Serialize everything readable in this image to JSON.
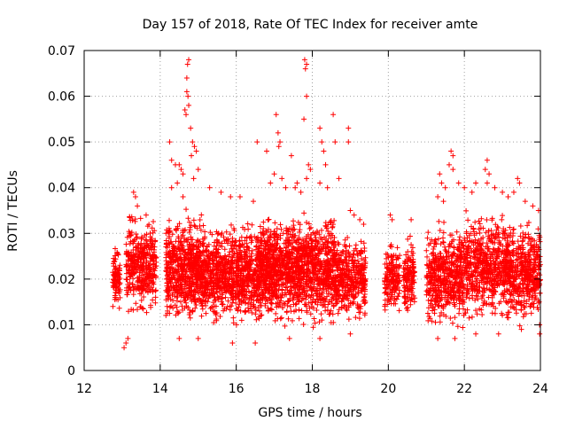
{
  "chart_data": {
    "type": "scatter",
    "title": "Day 157 of 2018, Rate Of TEC Index for receiver amte",
    "xlabel": "GPS time / hours",
    "ylabel": "ROTI / TECUs",
    "xlim": [
      12,
      24
    ],
    "ylim": [
      0,
      0.07
    ],
    "xticks": [
      12,
      14,
      16,
      18,
      20,
      22,
      24
    ],
    "yticks": [
      0,
      0.01,
      0.02,
      0.03,
      0.04,
      0.05,
      0.06,
      0.07
    ],
    "xtick_labels": [
      "12",
      "14",
      "16",
      "18",
      "20",
      "22",
      "24"
    ],
    "ytick_labels": [
      "0",
      "0.01",
      "0.02",
      "0.03",
      "0.04",
      "0.05",
      "0.06",
      "0.07"
    ],
    "grid": true,
    "marker": "+",
    "series_color": "#ff0000",
    "clusters": [
      {
        "x_start": 12.75,
        "x_end": 12.95,
        "y_min": 0.012,
        "y_max": 0.029,
        "count": 90
      },
      {
        "x_start": 13.1,
        "x_end": 13.9,
        "y_min": 0.009,
        "y_max": 0.036,
        "count": 380
      },
      {
        "x_start": 14.15,
        "x_end": 15.2,
        "y_min": 0.008,
        "y_max": 0.036,
        "count": 700
      },
      {
        "x_start": 15.2,
        "x_end": 16.6,
        "y_min": 0.008,
        "y_max": 0.034,
        "count": 800
      },
      {
        "x_start": 16.6,
        "x_end": 17.5,
        "y_min": 0.008,
        "y_max": 0.036,
        "count": 650
      },
      {
        "x_start": 17.5,
        "x_end": 18.6,
        "y_min": 0.008,
        "y_max": 0.036,
        "count": 700
      },
      {
        "x_start": 18.6,
        "x_end": 19.4,
        "y_min": 0.009,
        "y_max": 0.031,
        "count": 400
      },
      {
        "x_start": 19.9,
        "x_end": 20.3,
        "y_min": 0.011,
        "y_max": 0.029,
        "count": 160
      },
      {
        "x_start": 20.4,
        "x_end": 20.7,
        "y_min": 0.011,
        "y_max": 0.03,
        "count": 130
      },
      {
        "x_start": 21.0,
        "x_end": 22.0,
        "y_min": 0.008,
        "y_max": 0.034,
        "count": 520
      },
      {
        "x_start": 22.0,
        "x_end": 23.2,
        "y_min": 0.009,
        "y_max": 0.036,
        "count": 620
      },
      {
        "x_start": 23.2,
        "x_end": 24.0,
        "y_min": 0.009,
        "y_max": 0.034,
        "count": 420
      }
    ],
    "outliers": [
      {
        "x": 13.3,
        "y": 0.039
      },
      {
        "x": 13.35,
        "y": 0.038
      },
      {
        "x": 13.4,
        "y": 0.036
      },
      {
        "x": 13.05,
        "y": 0.005
      },
      {
        "x": 13.1,
        "y": 0.006
      },
      {
        "x": 13.15,
        "y": 0.007
      },
      {
        "x": 14.25,
        "y": 0.05
      },
      {
        "x": 14.3,
        "y": 0.046
      },
      {
        "x": 14.4,
        "y": 0.045
      },
      {
        "x": 14.5,
        "y": 0.045
      },
      {
        "x": 14.55,
        "y": 0.044
      },
      {
        "x": 14.6,
        "y": 0.043
      },
      {
        "x": 14.7,
        "y": 0.064
      },
      {
        "x": 14.72,
        "y": 0.067
      },
      {
        "x": 14.75,
        "y": 0.068
      },
      {
        "x": 14.7,
        "y": 0.061
      },
      {
        "x": 14.73,
        "y": 0.06
      },
      {
        "x": 14.65,
        "y": 0.057
      },
      {
        "x": 14.68,
        "y": 0.056
      },
      {
        "x": 14.75,
        "y": 0.058
      },
      {
        "x": 14.8,
        "y": 0.053
      },
      {
        "x": 14.85,
        "y": 0.05
      },
      {
        "x": 14.9,
        "y": 0.049
      },
      {
        "x": 14.82,
        "y": 0.047
      },
      {
        "x": 14.95,
        "y": 0.048
      },
      {
        "x": 15.0,
        "y": 0.044
      },
      {
        "x": 14.88,
        "y": 0.042
      },
      {
        "x": 14.3,
        "y": 0.04
      },
      {
        "x": 14.45,
        "y": 0.041
      },
      {
        "x": 14.6,
        "y": 0.038
      },
      {
        "x": 15.3,
        "y": 0.04
      },
      {
        "x": 15.6,
        "y": 0.039
      },
      {
        "x": 15.85,
        "y": 0.038
      },
      {
        "x": 16.1,
        "y": 0.038
      },
      {
        "x": 16.45,
        "y": 0.037
      },
      {
        "x": 16.55,
        "y": 0.05
      },
      {
        "x": 16.8,
        "y": 0.048
      },
      {
        "x": 16.9,
        "y": 0.041
      },
      {
        "x": 17.05,
        "y": 0.056
      },
      {
        "x": 17.1,
        "y": 0.052
      },
      {
        "x": 17.15,
        "y": 0.05
      },
      {
        "x": 17.12,
        "y": 0.049
      },
      {
        "x": 17.0,
        "y": 0.043
      },
      {
        "x": 17.2,
        "y": 0.042
      },
      {
        "x": 17.3,
        "y": 0.04
      },
      {
        "x": 17.45,
        "y": 0.047
      },
      {
        "x": 17.55,
        "y": 0.04
      },
      {
        "x": 17.6,
        "y": 0.041
      },
      {
        "x": 17.7,
        "y": 0.039
      },
      {
        "x": 17.78,
        "y": 0.055
      },
      {
        "x": 17.8,
        "y": 0.068
      },
      {
        "x": 17.82,
        "y": 0.066
      },
      {
        "x": 17.85,
        "y": 0.067
      },
      {
        "x": 17.85,
        "y": 0.06
      },
      {
        "x": 17.9,
        "y": 0.045
      },
      {
        "x": 17.95,
        "y": 0.044
      },
      {
        "x": 17.85,
        "y": 0.042
      },
      {
        "x": 18.2,
        "y": 0.053
      },
      {
        "x": 18.25,
        "y": 0.05
      },
      {
        "x": 18.3,
        "y": 0.048
      },
      {
        "x": 18.35,
        "y": 0.045
      },
      {
        "x": 18.4,
        "y": 0.04
      },
      {
        "x": 18.2,
        "y": 0.041
      },
      {
        "x": 18.55,
        "y": 0.056
      },
      {
        "x": 18.6,
        "y": 0.05
      },
      {
        "x": 18.7,
        "y": 0.042
      },
      {
        "x": 18.95,
        "y": 0.053
      },
      {
        "x": 18.95,
        "y": 0.05
      },
      {
        "x": 19.0,
        "y": 0.035
      },
      {
        "x": 19.1,
        "y": 0.034
      },
      {
        "x": 19.25,
        "y": 0.033
      },
      {
        "x": 19.35,
        "y": 0.032
      },
      {
        "x": 20.05,
        "y": 0.034
      },
      {
        "x": 20.1,
        "y": 0.033
      },
      {
        "x": 20.6,
        "y": 0.033
      },
      {
        "x": 21.35,
        "y": 0.043
      },
      {
        "x": 21.4,
        "y": 0.041
      },
      {
        "x": 21.5,
        "y": 0.04
      },
      {
        "x": 21.3,
        "y": 0.038
      },
      {
        "x": 21.45,
        "y": 0.037
      },
      {
        "x": 21.6,
        "y": 0.045
      },
      {
        "x": 21.65,
        "y": 0.048
      },
      {
        "x": 21.7,
        "y": 0.047
      },
      {
        "x": 21.7,
        "y": 0.044
      },
      {
        "x": 21.85,
        "y": 0.041
      },
      {
        "x": 22.0,
        "y": 0.04
      },
      {
        "x": 22.2,
        "y": 0.039
      },
      {
        "x": 22.3,
        "y": 0.041
      },
      {
        "x": 22.55,
        "y": 0.044
      },
      {
        "x": 22.6,
        "y": 0.046
      },
      {
        "x": 22.65,
        "y": 0.043
      },
      {
        "x": 22.6,
        "y": 0.041
      },
      {
        "x": 22.8,
        "y": 0.04
      },
      {
        "x": 23.0,
        "y": 0.039
      },
      {
        "x": 23.15,
        "y": 0.038
      },
      {
        "x": 23.3,
        "y": 0.039
      },
      {
        "x": 23.4,
        "y": 0.042
      },
      {
        "x": 23.45,
        "y": 0.041
      },
      {
        "x": 23.6,
        "y": 0.037
      },
      {
        "x": 23.8,
        "y": 0.036
      },
      {
        "x": 23.95,
        "y": 0.035
      },
      {
        "x": 14.5,
        "y": 0.007
      },
      {
        "x": 15.0,
        "y": 0.007
      },
      {
        "x": 15.9,
        "y": 0.006
      },
      {
        "x": 16.5,
        "y": 0.006
      },
      {
        "x": 17.4,
        "y": 0.007
      },
      {
        "x": 18.2,
        "y": 0.007
      },
      {
        "x": 19.0,
        "y": 0.008
      },
      {
        "x": 21.3,
        "y": 0.007
      },
      {
        "x": 21.75,
        "y": 0.007
      },
      {
        "x": 22.3,
        "y": 0.008
      },
      {
        "x": 22.9,
        "y": 0.008
      },
      {
        "x": 23.5,
        "y": 0.009
      },
      {
        "x": 23.98,
        "y": 0.008
      }
    ]
  }
}
